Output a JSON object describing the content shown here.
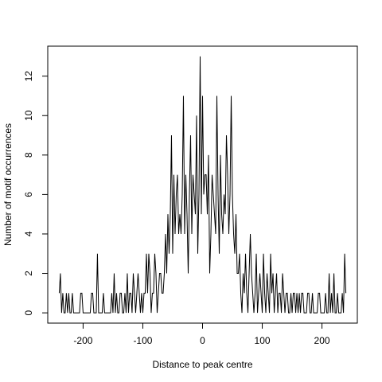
{
  "chart_data": {
    "type": "line",
    "xlabel": "Distance to peak centre",
    "ylabel": "Number of motif occurrences",
    "xlim": [
      -259.2,
      259.2
    ],
    "ylim": [
      -0.52,
      13.52
    ],
    "xticks": [
      -200,
      -100,
      0,
      100,
      200
    ],
    "yticks": [
      0,
      2,
      4,
      6,
      8,
      10,
      12
    ],
    "series": [
      {
        "color": "#000000",
        "x": [
          -240,
          -238,
          -236,
          -234,
          -232,
          -230,
          -228,
          -226,
          -224,
          -222,
          -220,
          -218,
          -216,
          -214,
          -212,
          -210,
          -208,
          -206,
          -204,
          -202,
          -200,
          -198,
          -196,
          -194,
          -192,
          -190,
          -188,
          -186,
          -184,
          -182,
          -180,
          -178,
          -176,
          -174,
          -172,
          -170,
          -168,
          -166,
          -164,
          -162,
          -160,
          -158,
          -156,
          -154,
          -152,
          -150,
          -148,
          -146,
          -144,
          -142,
          -140,
          -138,
          -136,
          -134,
          -132,
          -130,
          -128,
          -126,
          -124,
          -122,
          -120,
          -118,
          -116,
          -114,
          -112,
          -110,
          -108,
          -106,
          -104,
          -102,
          -100,
          -98,
          -96,
          -94,
          -92,
          -90,
          -88,
          -86,
          -84,
          -82,
          -80,
          -78,
          -76,
          -74,
          -72,
          -70,
          -68,
          -66,
          -64,
          -62,
          -60,
          -58,
          -56,
          -54,
          -52,
          -50,
          -48,
          -46,
          -44,
          -42,
          -40,
          -38,
          -36,
          -34,
          -32,
          -30,
          -28,
          -26,
          -24,
          -22,
          -20,
          -18,
          -16,
          -14,
          -12,
          -10,
          -8,
          -6,
          -4,
          -2,
          0,
          2,
          4,
          6,
          8,
          10,
          12,
          14,
          16,
          18,
          20,
          22,
          24,
          26,
          28,
          30,
          32,
          34,
          36,
          38,
          40,
          42,
          44,
          46,
          48,
          50,
          52,
          54,
          56,
          58,
          60,
          62,
          64,
          66,
          68,
          70,
          72,
          74,
          76,
          78,
          80,
          82,
          84,
          86,
          88,
          90,
          92,
          94,
          96,
          98,
          100,
          102,
          104,
          106,
          108,
          110,
          112,
          114,
          116,
          118,
          120,
          122,
          124,
          126,
          128,
          130,
          132,
          134,
          136,
          138,
          140,
          142,
          144,
          146,
          148,
          150,
          152,
          154,
          156,
          158,
          160,
          162,
          164,
          166,
          168,
          170,
          172,
          174,
          176,
          178,
          180,
          182,
          184,
          186,
          188,
          190,
          192,
          194,
          196,
          198,
          200,
          202,
          204,
          206,
          208,
          210,
          212,
          214,
          216,
          218,
          220,
          222,
          224,
          226,
          228,
          230,
          232,
          234,
          236,
          238,
          240
        ],
        "values": [
          1,
          2,
          0,
          1,
          0,
          0,
          1,
          0,
          1,
          0,
          0,
          1,
          0,
          0,
          0,
          0,
          0,
          0,
          1,
          1,
          0,
          0,
          0,
          0,
          0,
          0,
          0,
          1,
          1,
          0,
          0,
          0,
          3,
          0,
          0,
          0,
          0,
          1,
          0,
          0,
          0,
          0,
          0,
          0,
          1,
          0,
          2,
          0,
          1,
          0,
          0,
          1,
          1,
          0,
          0,
          1,
          0,
          2,
          0,
          1,
          1,
          0,
          2,
          1,
          0,
          1,
          2,
          1,
          0,
          1,
          0,
          1,
          1,
          3,
          1,
          3,
          2,
          0,
          1,
          1,
          3,
          2,
          0,
          1,
          2,
          2,
          1,
          1,
          2,
          4,
          2,
          5,
          3,
          5,
          9,
          3,
          7,
          4,
          6,
          7,
          4,
          5,
          4,
          6,
          11,
          4,
          7,
          5,
          2,
          6,
          9,
          4,
          7,
          6,
          5,
          10,
          3,
          6,
          13,
          5,
          11,
          6,
          7,
          7,
          5,
          8,
          2,
          4,
          7,
          6,
          5,
          4,
          11,
          6,
          3,
          8,
          5,
          4,
          6,
          5,
          9,
          7,
          4,
          6,
          11,
          6,
          4,
          3,
          5,
          2,
          2,
          3,
          1,
          0,
          2,
          1,
          3,
          1,
          0,
          2,
          4,
          2,
          1,
          0,
          1,
          3,
          0,
          1,
          2,
          1,
          0,
          3,
          1,
          0,
          2,
          1,
          0,
          3,
          1,
          2,
          0,
          1,
          2,
          0,
          1,
          1,
          0,
          2,
          1,
          0,
          1,
          1,
          0,
          0,
          1,
          0,
          1,
          1,
          0,
          1,
          0,
          1,
          0,
          1,
          1,
          0,
          0,
          0,
          1,
          1,
          0,
          0,
          1,
          0,
          0,
          0,
          0,
          1,
          1,
          0,
          0,
          0,
          0,
          1,
          0,
          0,
          2,
          0,
          1,
          0,
          2,
          0,
          0,
          1,
          0,
          0,
          0,
          1,
          0,
          3,
          1
        ]
      }
    ]
  }
}
